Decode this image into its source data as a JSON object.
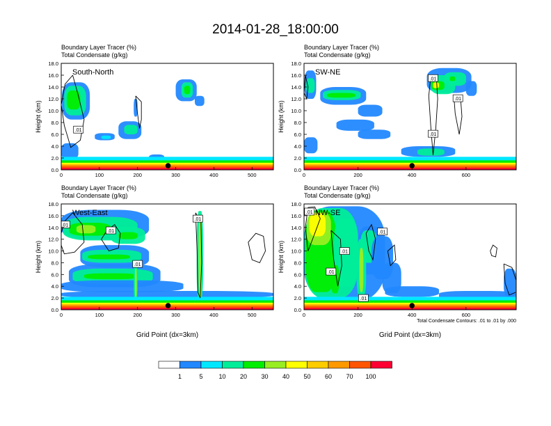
{
  "page": {
    "title": "2014-01-28_18:00:00",
    "contour_note": "Total Condensate Contours: .01 to .01 by .000"
  },
  "colorbar": {
    "colors": [
      "#ffffff",
      "#2288ff",
      "#00e8ff",
      "#00ee99",
      "#00ee00",
      "#99ee22",
      "#ffff00",
      "#ffcc00",
      "#ff9900",
      "#ff5500",
      "#ff0033"
    ],
    "labels": [
      "1",
      "5",
      "10",
      "20",
      "30",
      "40",
      "50",
      "60",
      "70",
      "100"
    ]
  },
  "chart_data": [
    {
      "type": "heatmap",
      "panel_label": "South-North",
      "header_line1": "Boundary Layer Tracer   (%)",
      "header_line2": "Total Condensate   (g/kg)",
      "ylabel": "Height (km)",
      "xlabel": "",
      "xlim": [
        0,
        556
      ],
      "ylim": [
        0,
        18
      ],
      "xticks": [
        0,
        100,
        200,
        300,
        400,
        500
      ],
      "yticks": [
        "0.0",
        "2.0",
        "4.0",
        "6.0",
        "8.0",
        "10.0",
        "12.0",
        "14.0",
        "16.0",
        "18.0"
      ],
      "marker_x": 280,
      "contour_labels": [
        {
          "text": ".01",
          "x": 45,
          "y": 6.8
        }
      ]
    },
    {
      "type": "heatmap",
      "panel_label": "SW-NE",
      "header_line1": "Boundary Layer Tracer   (%)",
      "header_line2": "Total Condensate   (g/kg)",
      "ylabel": "Height (km)",
      "xlabel": "",
      "xlim": [
        0,
        786
      ],
      "ylim": [
        0,
        18
      ],
      "xticks": [
        0,
        200,
        400,
        600
      ],
      "yticks": [
        "0.0",
        "2.0",
        "4.0",
        "6.0",
        "8.0",
        "10.0",
        "12.0",
        "14.0",
        "16.0",
        "18.0"
      ],
      "marker_x": 400,
      "contour_labels": [
        {
          "text": ".01",
          "x": 478,
          "y": 15.5
        },
        {
          "text": ".01",
          "x": 570,
          "y": 12.1
        },
        {
          "text": ".01",
          "x": 478,
          "y": 6.1
        }
      ]
    },
    {
      "type": "heatmap",
      "panel_label": "West-East",
      "header_line1": "Boundary Layer Tracer   (%)",
      "header_line2": "Total Condensate   (g/kg)",
      "ylabel": "Height (km)",
      "xlabel": "Grid Point (dx=3km)",
      "xlim": [
        0,
        556
      ],
      "ylim": [
        0,
        18
      ],
      "xticks": [
        0,
        100,
        200,
        300,
        400,
        500
      ],
      "yticks": [
        "0.0",
        "2.0",
        "4.0",
        "6.0",
        "8.0",
        "10.0",
        "12.0",
        "14.0",
        "16.0",
        "18.0"
      ],
      "marker_x": 280,
      "contour_labels": [
        {
          "text": ".01",
          "x": 10,
          "y": 14.5
        },
        {
          "text": ".01",
          "x": 130,
          "y": 13.5
        },
        {
          "text": ".01",
          "x": 200,
          "y": 7.8
        },
        {
          "text": ".01",
          "x": 358,
          "y": 15.5
        }
      ]
    },
    {
      "type": "heatmap",
      "panel_label": "NW-SE",
      "header_line1": "Boundary Layer Tracer   (%)",
      "header_line2": "Total Condensate   (g/kg)",
      "ylabel": "Height (km)",
      "xlabel": "Grid Point (dx=3km)",
      "xlim": [
        0,
        786
      ],
      "ylim": [
        0,
        18
      ],
      "xticks": [
        0,
        200,
        400,
        600
      ],
      "yticks": [
        "0.0",
        "2.0",
        "4.0",
        "6.0",
        "8.0",
        "10.0",
        "12.0",
        "14.0",
        "16.0",
        "18.0"
      ],
      "marker_x": 400,
      "contour_labels": [
        {
          "text": ".01",
          "x": 20,
          "y": 16.7
        },
        {
          "text": ".01",
          "x": 290,
          "y": 13.3
        },
        {
          "text": ".01",
          "x": 150,
          "y": 10.0
        },
        {
          "text": ".01",
          "x": 100,
          "y": 6.5
        },
        {
          "text": ".01",
          "x": 220,
          "y": 2.0
        }
      ]
    }
  ]
}
